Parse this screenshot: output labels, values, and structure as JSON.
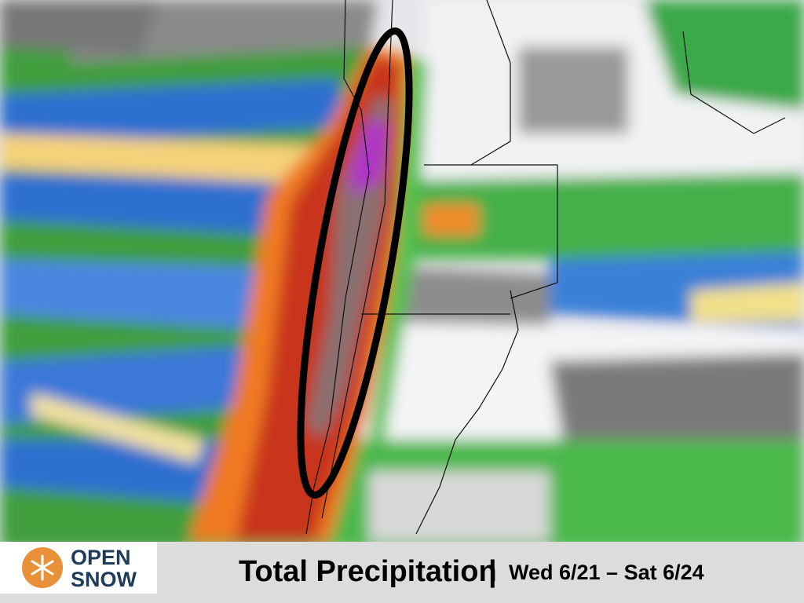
{
  "logo": {
    "line1": "OPEN",
    "line2": "SNOW"
  },
  "caption": {
    "title": "Total Precipitation",
    "separator": "|",
    "dates": "Wed 6/21 – Sat 6/24"
  }
}
